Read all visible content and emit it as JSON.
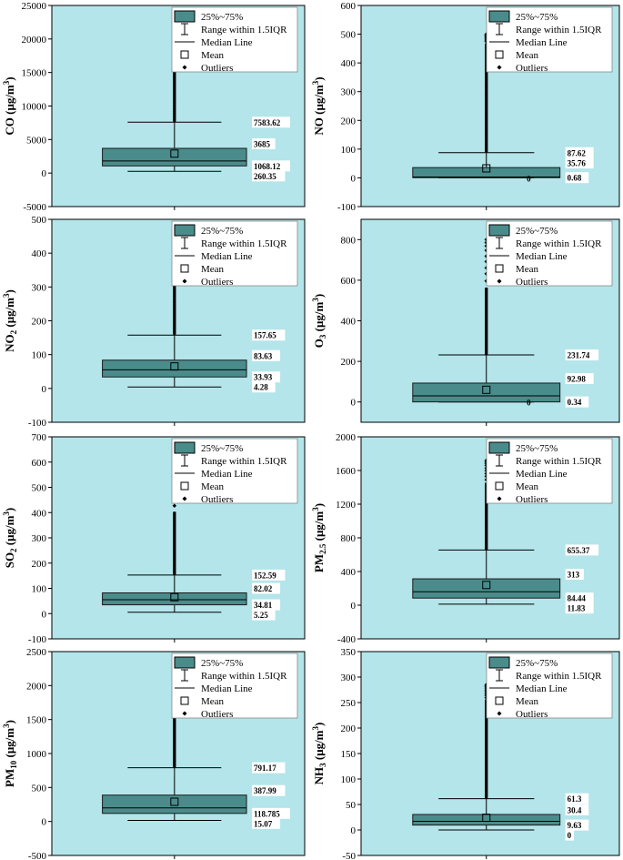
{
  "colors": {
    "panel_bg": "#b3e5ea",
    "box_fill": "#4a8c8c",
    "box_stroke": "#1a1a1a",
    "legend_bg": "#ffffff"
  },
  "legend": {
    "box": "25%~75%",
    "whisker": "Range within 1.5IQR",
    "median": "Median Line",
    "mean": "Mean",
    "outliers": "Outliers"
  },
  "chart_data": [
    {
      "type": "box",
      "ylabel": "CO (μg/m3)",
      "ylabel_main": "CO",
      "ylabel_sub": "",
      "ylabel_unit_pre": " (μg/m",
      "ylabel_unit_sup": "3",
      "ylabel_unit_post": ")",
      "ylim": [
        -5000,
        25000
      ],
      "yticks": [
        -5000,
        0,
        5000,
        10000,
        15000,
        20000,
        25000
      ],
      "ytick_labels": [
        "-5000",
        "0",
        "5000",
        "10000",
        "15000",
        "20000",
        "25000"
      ],
      "whisker_low": 260.35,
      "q1": 1068.12,
      "median": 1800,
      "q3": 3685,
      "whisker_high": 7583.62,
      "mean": 2900,
      "outlier_max": 21100,
      "outlier_dense_top": 16500,
      "annotations": [
        {
          "value": 7583.62,
          "label": "7583.62"
        },
        {
          "value": 3685,
          "label": "3685"
        },
        {
          "value": 1068.12,
          "label": "1068.12"
        },
        {
          "value": 260.35,
          "label": "260.35"
        }
      ]
    },
    {
      "type": "box",
      "ylabel": "NO (μg/m3)",
      "ylabel_main": "NO",
      "ylabel_sub": "",
      "ylabel_unit_pre": " (μg/m",
      "ylabel_unit_sup": "3",
      "ylabel_unit_post": ")",
      "ylim": [
        -100,
        600
      ],
      "yticks": [
        -100,
        0,
        100,
        200,
        300,
        400,
        500,
        600
      ],
      "ytick_labels": [
        "-100",
        "0",
        "100",
        "200",
        "300",
        "400",
        "500",
        "600"
      ],
      "whisker_low": 0,
      "q1": 0.68,
      "median": 3,
      "q3": 35.76,
      "whisker_high": 87.62,
      "mean": 33,
      "outlier_max": 500,
      "outlier_dense_top": 470,
      "annotations": [
        {
          "value": 87.62,
          "label": "87.62"
        },
        {
          "value": 35.76,
          "label": "35.76"
        },
        {
          "value": 0,
          "label": "0",
          "inner": true
        },
        {
          "value": 0.68,
          "label": "0.68"
        }
      ]
    },
    {
      "type": "box",
      "ylabel": "NO2 (μg/m3)",
      "ylabel_main": "NO",
      "ylabel_sub": "2",
      "ylabel_unit_pre": " (μg/m",
      "ylabel_unit_sup": "3",
      "ylabel_unit_post": ")",
      "ylim": [
        -100,
        500
      ],
      "yticks": [
        -100,
        0,
        100,
        200,
        300,
        400,
        500
      ],
      "ytick_labels": [
        "-100",
        "0",
        "100",
        "200",
        "300",
        "400",
        "500"
      ],
      "whisker_low": 4.28,
      "q1": 33.93,
      "median": 55,
      "q3": 83.63,
      "whisker_high": 157.65,
      "mean": 65,
      "outlier_max": 460,
      "outlier_dense_top": 330,
      "annotations": [
        {
          "value": 157.65,
          "label": "157.65"
        },
        {
          "value": 83.63,
          "label": "83.63"
        },
        {
          "value": 33.93,
          "label": "33.93"
        },
        {
          "value": 4.28,
          "label": "4.28"
        }
      ]
    },
    {
      "type": "box",
      "ylabel": "O3 (μg/m3)",
      "ylabel_main": "O",
      "ylabel_sub": "3",
      "ylabel_unit_pre": " (μg/m",
      "ylabel_unit_sup": "3",
      "ylabel_unit_post": ")",
      "ylim": [
        -100,
        900
      ],
      "yticks": [
        0,
        200,
        400,
        600,
        800
      ],
      "ytick_labels": [
        "0",
        "200",
        "400",
        "600",
        "800"
      ],
      "whisker_low": 0,
      "q1": 0.34,
      "median": 30,
      "q3": 92.98,
      "whisker_high": 231.74,
      "mean": 60,
      "outlier_max": 800,
      "outlier_dense_top": 560,
      "annotations": [
        {
          "value": 231.74,
          "label": "231.74"
        },
        {
          "value": 92.98,
          "label": "92.98"
        },
        {
          "value": 0,
          "label": "0",
          "inner": true
        },
        {
          "value": 0.34,
          "label": "0.34"
        }
      ]
    },
    {
      "type": "box",
      "ylabel": "SO2 (μg/m3)",
      "ylabel_main": "SO",
      "ylabel_sub": "2",
      "ylabel_unit_pre": " (μg/m",
      "ylabel_unit_sup": "3",
      "ylabel_unit_post": ")",
      "ylim": [
        -100,
        700
      ],
      "yticks": [
        -100,
        0,
        100,
        200,
        300,
        400,
        500,
        600,
        700
      ],
      "ytick_labels": [
        "-100",
        "0",
        "100",
        "200",
        "300",
        "400",
        "500",
        "600",
        "700"
      ],
      "whisker_low": 5.25,
      "q1": 34.81,
      "median": 55,
      "q3": 82.02,
      "whisker_high": 152.59,
      "mean": 65,
      "outlier_max": 580,
      "outlier_dense_top": 400,
      "annotations": [
        {
          "value": 152.59,
          "label": "152.59"
        },
        {
          "value": 82.02,
          "label": "82.02"
        },
        {
          "value": 34.81,
          "label": "34.81"
        },
        {
          "value": 5.25,
          "label": "5.25"
        }
      ]
    },
    {
      "type": "box",
      "ylabel": "PM2.5 (μg/m3)",
      "ylabel_main": "PM",
      "ylabel_sub": "2.5",
      "ylabel_unit_pre": " (μg/m",
      "ylabel_unit_sup": "3",
      "ylabel_unit_post": ")",
      "ylim": [
        -400,
        2000
      ],
      "yticks": [
        -400,
        0,
        400,
        800,
        1200,
        1600,
        2000
      ],
      "ytick_labels": [
        "-400",
        "0",
        "400",
        "800",
        "1200",
        "1600",
        "2000"
      ],
      "whisker_low": 11.83,
      "q1": 84.44,
      "median": 160,
      "q3": 313,
      "whisker_high": 655.37,
      "mean": 240,
      "outlier_max": 1720,
      "outlier_dense_top": 1450,
      "annotations": [
        {
          "value": 655.37,
          "label": "655.37"
        },
        {
          "value": 313,
          "label": "313"
        },
        {
          "value": 84.44,
          "label": "84.44"
        },
        {
          "value": 11.83,
          "label": "11.83"
        }
      ]
    },
    {
      "type": "box",
      "ylabel": "PM10 (μg/m3)",
      "ylabel_main": "PM",
      "ylabel_sub": "10",
      "ylabel_unit_pre": " (μg/m",
      "ylabel_unit_sup": "3",
      "ylabel_unit_post": ")",
      "ylim": [
        -500,
        2500
      ],
      "yticks": [
        -500,
        0,
        500,
        1000,
        1500,
        2000,
        2500
      ],
      "ytick_labels": [
        "-500",
        "0",
        "500",
        "1000",
        "1500",
        "2000",
        "2500"
      ],
      "whisker_low": 15.07,
      "q1": 118.785,
      "median": 200,
      "q3": 387.99,
      "whisker_high": 791.17,
      "mean": 290,
      "outlier_max": 1980,
      "outlier_dense_top": 1600,
      "annotations": [
        {
          "value": 791.17,
          "label": "791.17"
        },
        {
          "value": 387.99,
          "label": "387.99"
        },
        {
          "value": 118.785,
          "label": "118.785"
        },
        {
          "value": 15.07,
          "label": "15.07"
        }
      ]
    },
    {
      "type": "box",
      "ylabel": "NH3 (μg/m3)",
      "ylabel_main": "NH",
      "ylabel_sub": "3",
      "ylabel_unit_pre": " (μg/m",
      "ylabel_unit_sup": "3",
      "ylabel_unit_post": ")",
      "ylim": [
        -50,
        350
      ],
      "yticks": [
        -50,
        0,
        50,
        100,
        150,
        200,
        250,
        300,
        350
      ],
      "ytick_labels": [
        "-50",
        "0",
        "50",
        "100",
        "150",
        "200",
        "250",
        "300",
        "350"
      ],
      "whisker_low": 0,
      "q1": 9.63,
      "median": 17,
      "q3": 30.4,
      "whisker_high": 61.3,
      "mean": 24,
      "outlier_max": 285,
      "outlier_dense_top": 255,
      "annotations": [
        {
          "value": 61.3,
          "label": "61.3"
        },
        {
          "value": 30.4,
          "label": "30.4"
        },
        {
          "value": 9.63,
          "label": "9.63"
        },
        {
          "value": 0,
          "label": "0"
        }
      ]
    }
  ]
}
